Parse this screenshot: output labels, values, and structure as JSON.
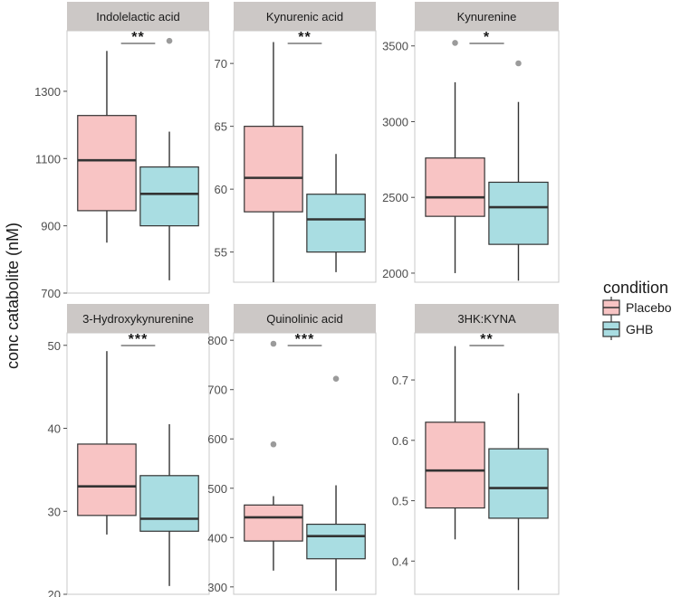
{
  "chart_data": {
    "type": "boxplot",
    "ylabel": "conc catabolite (nM)",
    "legend": {
      "title": "condition",
      "position": "right",
      "entries": [
        {
          "name": "Placebo",
          "color": "#f8c4c4"
        },
        {
          "name": "GHB",
          "color": "#a9dde2"
        }
      ]
    },
    "panels": [
      {
        "title": "Indolelactic acid",
        "ylim": [
          700,
          1480
        ],
        "yticks": [
          700,
          900,
          1100,
          1300
        ],
        "ytick_labels": [
          "700",
          "900",
          "1100",
          "1300"
        ],
        "significance": "**",
        "groups": [
          {
            "name": "Placebo",
            "whisker_low": 850,
            "q1": 945,
            "median": 1095,
            "q3": 1228,
            "whisker_high": 1420,
            "outliers": []
          },
          {
            "name": "GHB",
            "whisker_low": 738,
            "q1": 900,
            "median": 995,
            "q3": 1075,
            "whisker_high": 1180,
            "outliers": [
              1450
            ]
          }
        ]
      },
      {
        "title": "Kynurenic acid",
        "ylim": [
          52.6,
          72.6
        ],
        "yticks": [
          55,
          60,
          65,
          70
        ],
        "ytick_labels": [
          "55",
          "60",
          "65",
          "70"
        ],
        "significance": "**",
        "groups": [
          {
            "name": "Placebo",
            "whisker_low": 52.6,
            "q1": 58.2,
            "median": 60.9,
            "q3": 65.0,
            "whisker_high": 71.7,
            "outliers": []
          },
          {
            "name": "GHB",
            "whisker_low": 53.4,
            "q1": 55.0,
            "median": 57.6,
            "q3": 59.6,
            "whisker_high": 62.8,
            "outliers": []
          }
        ]
      },
      {
        "title": "Kynurenine",
        "ylim": [
          1940,
          3600
        ],
        "yticks": [
          2000,
          2500,
          3000,
          3500
        ],
        "ytick_labels": [
          "2000",
          "2500",
          "3000",
          "3500"
        ],
        "significance": "*",
        "groups": [
          {
            "name": "Placebo",
            "whisker_low": 2000,
            "q1": 2375,
            "median": 2500,
            "q3": 2760,
            "whisker_high": 3260,
            "outliers": [
              3520
            ]
          },
          {
            "name": "GHB",
            "whisker_low": 1950,
            "q1": 2190,
            "median": 2435,
            "q3": 2600,
            "whisker_high": 3130,
            "outliers": [
              3385
            ]
          }
        ]
      },
      {
        "title": "3-Hydroxykynurenine",
        "ylim": [
          20,
          51.5
        ],
        "yticks": [
          20,
          30,
          40,
          50
        ],
        "ytick_labels": [
          "20",
          "30",
          "40",
          "50"
        ],
        "significance": "***",
        "groups": [
          {
            "name": "Placebo",
            "whisker_low": 27.2,
            "q1": 29.5,
            "median": 33.0,
            "q3": 38.1,
            "whisker_high": 49.3,
            "outliers": []
          },
          {
            "name": "GHB",
            "whisker_low": 21.0,
            "q1": 27.6,
            "median": 29.1,
            "q3": 34.3,
            "whisker_high": 40.5,
            "outliers": []
          }
        ]
      },
      {
        "title": "Quinolinic acid",
        "ylim": [
          285,
          815
        ],
        "yticks": [
          300,
          400,
          500,
          600,
          700,
          800
        ],
        "ytick_labels": [
          "300",
          "400",
          "500",
          "600",
          "700",
          "800"
        ],
        "significance": "***",
        "groups": [
          {
            "name": "Placebo",
            "whisker_low": 333,
            "q1": 393,
            "median": 441,
            "q3": 466,
            "whisker_high": 484,
            "outliers": [
              793,
              589
            ]
          },
          {
            "name": "GHB",
            "whisker_low": 292,
            "q1": 357,
            "median": 403,
            "q3": 427,
            "whisker_high": 506,
            "outliers": [
              722
            ]
          }
        ]
      },
      {
        "title": "3HK:KYNA",
        "ylim": [
          0.345,
          0.778
        ],
        "yticks": [
          0.4,
          0.5,
          0.6,
          0.7
        ],
        "ytick_labels": [
          "0.4",
          "0.5",
          "0.6",
          "0.7"
        ],
        "significance": "**",
        "groups": [
          {
            "name": "Placebo",
            "whisker_low": 0.436,
            "q1": 0.488,
            "median": 0.55,
            "q3": 0.63,
            "whisker_high": 0.756,
            "outliers": []
          },
          {
            "name": "GHB",
            "whisker_low": 0.352,
            "q1": 0.471,
            "median": 0.521,
            "q3": 0.586,
            "whisker_high": 0.678,
            "outliers": []
          }
        ]
      }
    ]
  }
}
